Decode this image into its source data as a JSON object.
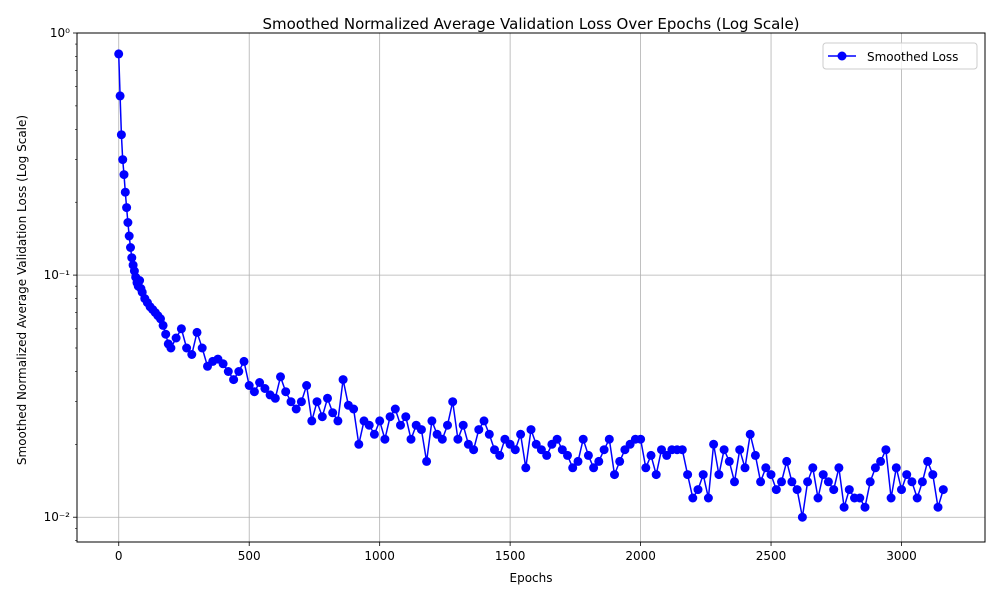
{
  "chart_data": {
    "type": "line",
    "title": "Smoothed Normalized Average Validation Loss Over Epochs (Log Scale)",
    "xlabel": "Epochs",
    "ylabel": "Smoothed Normalized Average Validation Loss (Log Scale)",
    "y_scale": "log",
    "xlim": [
      -160,
      3320
    ],
    "ylim": [
      0.0079,
      1.0
    ],
    "x_ticks": [
      0,
      500,
      1000,
      1500,
      2000,
      2500,
      3000
    ],
    "x_tick_labels": [
      "0",
      "500",
      "1000",
      "1500",
      "2000",
      "2500",
      "3000"
    ],
    "y_ticks": [
      0.01,
      0.1,
      1.0
    ],
    "y_tick_labels": [
      "10⁻²",
      "10⁻¹",
      "10⁰"
    ],
    "grid": true,
    "legend_position": "top-right",
    "series": [
      {
        "name": "Smoothed Loss",
        "color": "#0000ff",
        "marker": "circle",
        "x": [
          0,
          5,
          10,
          15,
          20,
          25,
          30,
          35,
          40,
          45,
          50,
          55,
          60,
          65,
          70,
          75,
          80,
          85,
          90,
          100,
          110,
          120,
          130,
          140,
          150,
          160,
          170,
          180,
          190,
          200,
          220,
          240,
          260,
          280,
          300,
          320,
          340,
          360,
          380,
          400,
          420,
          440,
          460,
          480,
          500,
          520,
          540,
          560,
          580,
          600,
          620,
          640,
          660,
          680,
          700,
          720,
          740,
          760,
          780,
          800,
          820,
          840,
          860,
          880,
          900,
          920,
          940,
          960,
          980,
          1000,
          1020,
          1040,
          1060,
          1080,
          1100,
          1120,
          1140,
          1160,
          1180,
          1200,
          1220,
          1240,
          1260,
          1280,
          1300,
          1320,
          1340,
          1360,
          1380,
          1400,
          1420,
          1440,
          1460,
          1480,
          1500,
          1520,
          1540,
          1560,
          1580,
          1600,
          1620,
          1640,
          1660,
          1680,
          1700,
          1720,
          1740,
          1760,
          1780,
          1800,
          1820,
          1840,
          1860,
          1880,
          1900,
          1920,
          1940,
          1960,
          1980,
          2000,
          2020,
          2040,
          2060,
          2080,
          2100,
          2120,
          2140,
          2160,
          2180,
          2200,
          2220,
          2240,
          2260,
          2280,
          2300,
          2320,
          2340,
          2360,
          2380,
          2400,
          2420,
          2440,
          2460,
          2480,
          2500,
          2520,
          2540,
          2560,
          2580,
          2600,
          2620,
          2640,
          2660,
          2680,
          2700,
          2720,
          2740,
          2760,
          2780,
          2800,
          2820,
          2840,
          2860,
          2880,
          2900,
          2920,
          2940,
          2960,
          2980,
          3000,
          3020,
          3040,
          3060,
          3080,
          3100,
          3120,
          3140,
          3160
        ],
        "y": [
          0.82,
          0.55,
          0.38,
          0.3,
          0.26,
          0.22,
          0.19,
          0.165,
          0.145,
          0.13,
          0.118,
          0.11,
          0.104,
          0.098,
          0.093,
          0.09,
          0.095,
          0.088,
          0.085,
          0.08,
          0.077,
          0.074,
          0.072,
          0.07,
          0.068,
          0.066,
          0.062,
          0.057,
          0.052,
          0.05,
          0.055,
          0.06,
          0.05,
          0.047,
          0.058,
          0.05,
          0.042,
          0.044,
          0.045,
          0.043,
          0.04,
          0.037,
          0.04,
          0.044,
          0.035,
          0.033,
          0.036,
          0.034,
          0.032,
          0.031,
          0.038,
          0.033,
          0.03,
          0.028,
          0.03,
          0.035,
          0.025,
          0.03,
          0.026,
          0.031,
          0.027,
          0.025,
          0.037,
          0.029,
          0.028,
          0.02,
          0.025,
          0.024,
          0.022,
          0.025,
          0.021,
          0.026,
          0.028,
          0.024,
          0.026,
          0.021,
          0.024,
          0.023,
          0.017,
          0.025,
          0.022,
          0.021,
          0.024,
          0.03,
          0.021,
          0.024,
          0.02,
          0.019,
          0.023,
          0.025,
          0.022,
          0.019,
          0.018,
          0.021,
          0.02,
          0.019,
          0.022,
          0.016,
          0.023,
          0.02,
          0.019,
          0.018,
          0.02,
          0.021,
          0.019,
          0.018,
          0.016,
          0.017,
          0.021,
          0.018,
          0.016,
          0.017,
          0.019,
          0.021,
          0.015,
          0.017,
          0.019,
          0.02,
          0.021,
          0.021,
          0.016,
          0.018,
          0.015,
          0.019,
          0.018,
          0.019,
          0.019,
          0.019,
          0.015,
          0.012,
          0.013,
          0.015,
          0.012,
          0.02,
          0.015,
          0.019,
          0.017,
          0.014,
          0.019,
          0.016,
          0.022,
          0.018,
          0.014,
          0.016,
          0.015,
          0.013,
          0.014,
          0.017,
          0.014,
          0.013,
          0.01,
          0.014,
          0.016,
          0.012,
          0.015,
          0.014,
          0.013,
          0.016,
          0.011,
          0.013,
          0.012,
          0.012,
          0.011,
          0.014,
          0.016,
          0.017,
          0.019,
          0.012,
          0.016,
          0.013,
          0.015,
          0.014,
          0.012,
          0.014,
          0.017,
          0.015,
          0.011,
          0.013
        ]
      }
    ]
  }
}
